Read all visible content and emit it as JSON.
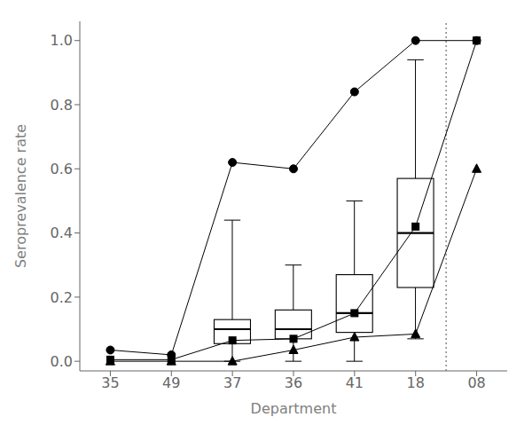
{
  "chart_data": {
    "type": "line",
    "xlabel": "Department",
    "ylabel": "Seroprevalence rate",
    "categories": [
      "35",
      "49",
      "37",
      "36",
      "41",
      "18",
      "08"
    ],
    "ylim": [
      -0.03,
      1.06
    ],
    "yticks": [
      {
        "value": 0.0,
        "label": "0.0"
      },
      0.2,
      0.4,
      0.6,
      0.8,
      {
        "value": 1.0,
        "label": "1.0"
      }
    ],
    "grid": false,
    "series": [
      {
        "type": "box",
        "color": "#000000",
        "values": [
          null,
          null,
          {
            "whislo": 0.0,
            "q1": 0.055,
            "median": 0.1,
            "q3": 0.13,
            "whishi": 0.44
          },
          {
            "whislo": 0.0,
            "q1": 0.07,
            "median": 0.1,
            "q3": 0.16,
            "whishi": 0.3
          },
          {
            "whislo": 0.0,
            "q1": 0.09,
            "median": 0.15,
            "q3": 0.27,
            "whishi": 0.5
          },
          {
            "whislo": 0.07,
            "q1": 0.23,
            "median": 0.4,
            "q3": 0.57,
            "whishi": 0.94
          },
          null
        ]
      },
      {
        "type": "line",
        "marker": "circle",
        "color": "#000000",
        "values": [
          0.035,
          0.02,
          0.62,
          0.6,
          0.84,
          1.0,
          1.0
        ]
      },
      {
        "type": "line",
        "marker": "square",
        "color": "#000000",
        "values": [
          0.005,
          0.005,
          0.065,
          0.07,
          0.15,
          0.42,
          1.0
        ]
      },
      {
        "type": "line",
        "marker": "triangle",
        "color": "#000000",
        "values": [
          0.0,
          0.0,
          0.0,
          0.035,
          0.075,
          0.085,
          0.6
        ]
      }
    ],
    "vline": {
      "after": "18",
      "line_style": "dotted",
      "color": "#777777"
    }
  }
}
